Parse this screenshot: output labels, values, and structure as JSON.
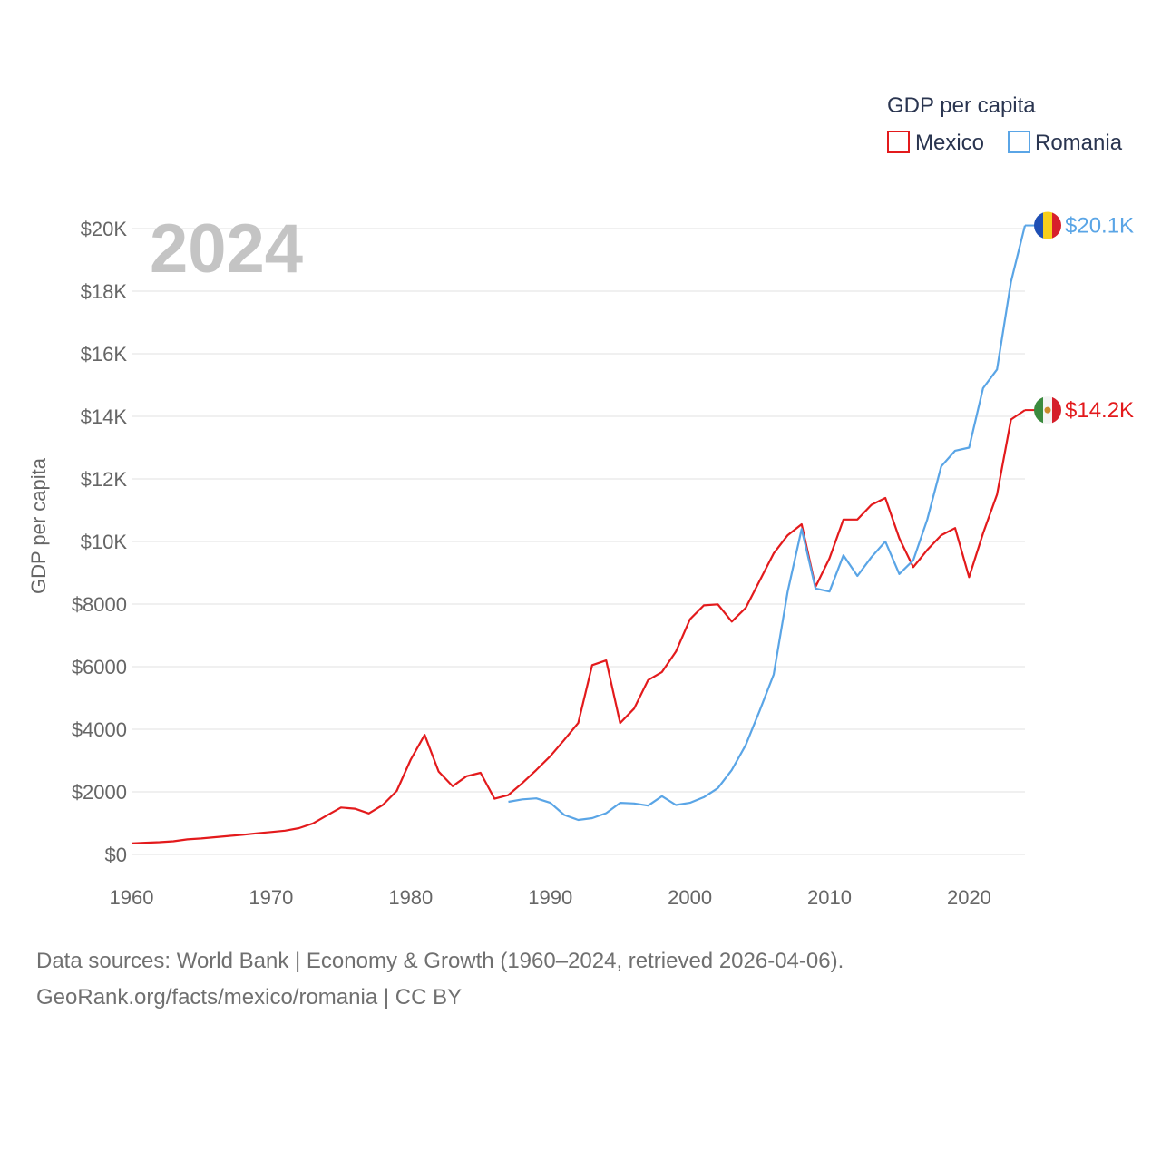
{
  "chart_data": {
    "type": "line",
    "title": "GDP per capita",
    "year_label": "2024",
    "ylabel": "GDP per capita",
    "xlabel": "",
    "xlim": [
      1960,
      2024
    ],
    "ylim": [
      0,
      20000
    ],
    "x_ticks": [
      1960,
      1970,
      1980,
      1990,
      2000,
      2010,
      2020
    ],
    "x_tick_labels": [
      "1960",
      "1970",
      "1980",
      "1990",
      "2000",
      "2010",
      "2020"
    ],
    "y_ticks": [
      0,
      2000,
      4000,
      6000,
      8000,
      10000,
      12000,
      14000,
      16000,
      18000,
      20000
    ],
    "y_tick_labels": [
      "$0",
      "$2000",
      "$4000",
      "$6000",
      "$8000",
      "$10K",
      "$12K",
      "$14K",
      "$16K",
      "$18K",
      "$20K"
    ],
    "grid": true,
    "legend": {
      "title": "GDP per capita",
      "position": "top-right",
      "entries": [
        "Mexico",
        "Romania"
      ]
    },
    "series": [
      {
        "name": "Mexico",
        "color": "#e31a1c",
        "end_label": "$14.2K",
        "flag": "mexico-flag-icon",
        "x": [
          1960,
          1961,
          1962,
          1963,
          1964,
          1965,
          1966,
          1967,
          1968,
          1969,
          1970,
          1971,
          1972,
          1973,
          1974,
          1975,
          1976,
          1977,
          1978,
          1979,
          1980,
          1981,
          1982,
          1983,
          1984,
          1985,
          1986,
          1987,
          1988,
          1989,
          1990,
          1991,
          1992,
          1993,
          1994,
          1995,
          1996,
          1997,
          1998,
          1999,
          2000,
          2001,
          2002,
          2003,
          2004,
          2005,
          2006,
          2007,
          2008,
          2009,
          2010,
          2011,
          2012,
          2013,
          2014,
          2015,
          2016,
          2017,
          2018,
          2019,
          2020,
          2021,
          2022,
          2023,
          2024
        ],
        "values": [
          355,
          375,
          390,
          420,
          480,
          510,
          550,
          590,
          630,
          675,
          715,
          760,
          840,
          990,
          1250,
          1500,
          1460,
          1310,
          1580,
          2030,
          3030,
          3820,
          2650,
          2180,
          2500,
          2610,
          1780,
          1900,
          2280,
          2700,
          3140,
          3660,
          4200,
          6050,
          6200,
          4200,
          4660,
          5570,
          5830,
          6480,
          7510,
          7960,
          7990,
          7440,
          7880,
          8750,
          9620,
          10200,
          10550,
          8550,
          9460,
          10700,
          10700,
          11170,
          11390,
          10100,
          9180,
          9730,
          10200,
          10430,
          8860,
          10260,
          11500,
          13900,
          14200
        ]
      },
      {
        "name": "Romania",
        "color": "#5aa5e6",
        "end_label": "$20.1K",
        "flag": "romania-flag-icon",
        "x": [
          1987,
          1988,
          1989,
          1990,
          1991,
          1992,
          1993,
          1994,
          1995,
          1996,
          1997,
          1998,
          1999,
          2000,
          2001,
          2002,
          2003,
          2004,
          2005,
          2006,
          2007,
          2008,
          2009,
          2010,
          2011,
          2012,
          2013,
          2014,
          2015,
          2016,
          2017,
          2018,
          2019,
          2020,
          2021,
          2022,
          2023,
          2024
        ],
        "values": [
          1680,
          1760,
          1790,
          1650,
          1260,
          1100,
          1160,
          1320,
          1650,
          1630,
          1560,
          1860,
          1580,
          1650,
          1830,
          2120,
          2700,
          3500,
          4600,
          5750,
          8400,
          10400,
          8500,
          8400,
          9560,
          8900,
          9500,
          10000,
          8960,
          9400,
          10700,
          12400,
          12900,
          13000,
          14900,
          15500,
          18300,
          20100
        ]
      }
    ]
  },
  "footer": {
    "line1": "Data sources: World Bank | Economy & Growth (1960–2024, retrieved 2026-04-06).",
    "line2": "GeoRank.org/facts/mexico/romania | CC BY"
  }
}
